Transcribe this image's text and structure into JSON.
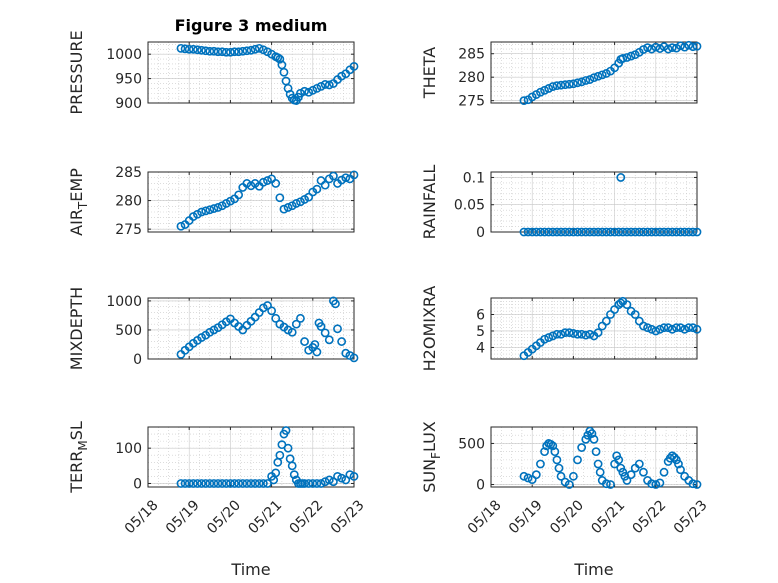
{
  "figure": {
    "title": "Figure 3 medium",
    "marker_color": "#0072BD"
  },
  "chart_data": [
    {
      "type": "scatter",
      "ylabel": "PRESSURE",
      "ylabel_sub": "",
      "ylabel_post": "",
      "ylim": [
        900,
        1025
      ],
      "yticks": [
        900,
        950,
        1000
      ],
      "ytick_labels": [
        "900",
        "950",
        "1000"
      ],
      "xlim": [
        0,
        5
      ],
      "xticks": [
        0,
        1,
        2,
        3,
        4,
        5
      ],
      "xtick_labels": [],
      "x": [
        0.8,
        0.9,
        1.0,
        1.1,
        1.2,
        1.3,
        1.4,
        1.5,
        1.6,
        1.7,
        1.8,
        1.9,
        2.0,
        2.1,
        2.2,
        2.3,
        2.4,
        2.5,
        2.6,
        2.7,
        2.8,
        2.9,
        3.0,
        3.1,
        3.15,
        3.2,
        3.25,
        3.3,
        3.35,
        3.4,
        3.45,
        3.5,
        3.55,
        3.6,
        3.65,
        3.7,
        3.8,
        3.9,
        4.0,
        4.1,
        4.2,
        4.3,
        4.4,
        4.5,
        4.6,
        4.7,
        4.8,
        4.9,
        5.0
      ],
      "y": [
        1012,
        1011,
        1010,
        1010,
        1009,
        1008,
        1007,
        1006,
        1006,
        1005,
        1005,
        1004,
        1004,
        1005,
        1005,
        1006,
        1007,
        1008,
        1010,
        1012,
        1009,
        1005,
        1000,
        995,
        993,
        990,
        978,
        963,
        945,
        930,
        918,
        910,
        906,
        905,
        912,
        920,
        924,
        922,
        926,
        930,
        934,
        938,
        937,
        940,
        948,
        955,
        960,
        968,
        975
      ]
    },
    {
      "type": "scatter",
      "ylabel": "THETA",
      "ylabel_sub": "",
      "ylabel_post": "",
      "ylim": [
        274.5,
        287.5
      ],
      "yticks": [
        275,
        280,
        285
      ],
      "ytick_labels": [
        "275",
        "280",
        "285"
      ],
      "xlim": [
        0,
        5
      ],
      "xticks": [
        0,
        1,
        2,
        3,
        4,
        5
      ],
      "xtick_labels": [],
      "x": [
        0.8,
        0.9,
        1.0,
        1.1,
        1.2,
        1.3,
        1.4,
        1.5,
        1.6,
        1.7,
        1.8,
        1.9,
        2.0,
        2.1,
        2.2,
        2.3,
        2.4,
        2.5,
        2.6,
        2.7,
        2.8,
        2.9,
        3.0,
        3.1,
        3.15,
        3.2,
        3.3,
        3.4,
        3.5,
        3.6,
        3.7,
        3.8,
        3.9,
        4.0,
        4.1,
        4.2,
        4.3,
        4.4,
        4.5,
        4.6,
        4.7,
        4.8,
        4.9,
        5.0
      ],
      "y": [
        275,
        275.2,
        275.8,
        276.3,
        276.8,
        277.2,
        277.6,
        278,
        278.2,
        278.3,
        278.4,
        278.5,
        278.6,
        278.8,
        279,
        279.3,
        279.5,
        279.9,
        280.2,
        280.5,
        280.8,
        281.3,
        282,
        283,
        283.8,
        284,
        284.2,
        284.5,
        284.8,
        285.3,
        285.9,
        286.3,
        286,
        286.4,
        286.1,
        286.5,
        286,
        286.3,
        286.2,
        286.7,
        286.4,
        286.8,
        286.5,
        286.6
      ]
    },
    {
      "type": "scatter",
      "ylabel": "AIR",
      "ylabel_sub": "T",
      "ylabel_post": "EMP",
      "ylim": [
        274.5,
        285
      ],
      "yticks": [
        275,
        280,
        285
      ],
      "ytick_labels": [
        "275",
        "280",
        "285"
      ],
      "xlim": [
        0,
        5
      ],
      "xticks": [
        0,
        1,
        2,
        3,
        4,
        5
      ],
      "xtick_labels": [],
      "x": [
        0.8,
        0.9,
        1.0,
        1.1,
        1.2,
        1.3,
        1.4,
        1.5,
        1.6,
        1.7,
        1.8,
        1.9,
        2.0,
        2.1,
        2.2,
        2.3,
        2.4,
        2.5,
        2.6,
        2.7,
        2.8,
        2.9,
        3.0,
        3.1,
        3.2,
        3.3,
        3.4,
        3.5,
        3.6,
        3.7,
        3.8,
        3.9,
        4.0,
        4.1,
        4.2,
        4.3,
        4.4,
        4.5,
        4.6,
        4.7,
        4.8,
        4.9,
        5.0
      ],
      "y": [
        275.5,
        275.8,
        276.5,
        277.2,
        277.6,
        278.0,
        278.2,
        278.4,
        278.6,
        278.8,
        279.1,
        279.5,
        279.9,
        280.3,
        281,
        282.3,
        283,
        282.6,
        283,
        282.5,
        283.2,
        283.5,
        283.8,
        283,
        280.5,
        278.5,
        278.8,
        279.1,
        279.5,
        279.8,
        280.2,
        280.6,
        281.5,
        282,
        283.5,
        282.7,
        283.8,
        284.3,
        283,
        283.6,
        284,
        283.8,
        284.5
      ]
    },
    {
      "type": "scatter",
      "ylabel": "RAINFALL",
      "ylabel_sub": "",
      "ylabel_post": "",
      "ylim": [
        0,
        0.11
      ],
      "yticks": [
        0,
        0.05,
        0.1
      ],
      "ytick_labels": [
        "0",
        "0.05",
        "0.1"
      ],
      "xlim": [
        0,
        5
      ],
      "xticks": [
        0,
        1,
        2,
        3,
        4,
        5
      ],
      "xtick_labels": [],
      "x": [
        0.8,
        0.9,
        1.0,
        1.1,
        1.2,
        1.3,
        1.4,
        1.5,
        1.6,
        1.7,
        1.8,
        1.9,
        2.0,
        2.1,
        2.2,
        2.3,
        2.4,
        2.5,
        2.6,
        2.7,
        2.8,
        2.9,
        3.0,
        3.1,
        3.2,
        3.3,
        3.4,
        3.5,
        3.6,
        3.7,
        3.8,
        3.9,
        4.0,
        4.1,
        4.2,
        4.3,
        4.4,
        4.5,
        4.6,
        4.7,
        4.8,
        4.9,
        5.0,
        3.15
      ],
      "y": [
        0,
        0,
        0,
        0,
        0,
        0,
        0,
        0,
        0,
        0,
        0,
        0,
        0,
        0,
        0,
        0,
        0,
        0,
        0,
        0,
        0,
        0,
        0,
        0,
        0,
        0,
        0,
        0,
        0,
        0,
        0,
        0,
        0,
        0,
        0,
        0,
        0,
        0,
        0,
        0,
        0,
        0,
        0,
        0.1
      ]
    },
    {
      "type": "scatter",
      "ylabel": "MIXDEPTH",
      "ylabel_sub": "",
      "ylabel_post": "",
      "ylim": [
        0,
        1050
      ],
      "yticks": [
        0,
        500,
        1000
      ],
      "ytick_labels": [
        "0",
        "500",
        "1000"
      ],
      "xlim": [
        0,
        5
      ],
      "xticks": [
        0,
        1,
        2,
        3,
        4,
        5
      ],
      "xtick_labels": [],
      "x": [
        0.8,
        0.9,
        1.0,
        1.1,
        1.2,
        1.3,
        1.4,
        1.5,
        1.6,
        1.7,
        1.8,
        1.9,
        2.0,
        2.1,
        2.2,
        2.3,
        2.4,
        2.5,
        2.6,
        2.7,
        2.8,
        2.9,
        3.0,
        3.1,
        3.2,
        3.3,
        3.4,
        3.5,
        3.6,
        3.7,
        3.8,
        3.9,
        4.0,
        4.05,
        4.1,
        4.15,
        4.2,
        4.3,
        4.4,
        4.5,
        4.55,
        4.6,
        4.7,
        4.8,
        4.9,
        5.0
      ],
      "y": [
        80,
        150,
        210,
        270,
        320,
        370,
        410,
        460,
        500,
        540,
        590,
        640,
        690,
        620,
        560,
        500,
        580,
        650,
        720,
        800,
        880,
        920,
        830,
        700,
        600,
        550,
        500,
        460,
        600,
        700,
        300,
        150,
        200,
        250,
        120,
        620,
        560,
        450,
        330,
        1000,
        950,
        520,
        300,
        100,
        60,
        20
      ]
    },
    {
      "type": "scatter",
      "ylabel": "H2OMIXRA",
      "ylabel_sub": "",
      "ylabel_post": "",
      "ylim": [
        3.3,
        7.0
      ],
      "yticks": [
        4,
        5,
        6
      ],
      "ytick_labels": [
        "4",
        "5",
        "6"
      ],
      "xlim": [
        0,
        5
      ],
      "xticks": [
        0,
        1,
        2,
        3,
        4,
        5
      ],
      "xtick_labels": [],
      "x": [
        0.8,
        0.9,
        1.0,
        1.1,
        1.2,
        1.3,
        1.4,
        1.5,
        1.6,
        1.7,
        1.8,
        1.9,
        2.0,
        2.1,
        2.2,
        2.3,
        2.4,
        2.5,
        2.6,
        2.7,
        2.8,
        2.9,
        3.0,
        3.1,
        3.15,
        3.2,
        3.3,
        3.4,
        3.5,
        3.6,
        3.7,
        3.8,
        3.9,
        4.0,
        4.1,
        4.2,
        4.3,
        4.4,
        4.5,
        4.6,
        4.7,
        4.8,
        4.9,
        5.0
      ],
      "y": [
        3.5,
        3.7,
        3.9,
        4.1,
        4.3,
        4.5,
        4.6,
        4.7,
        4.8,
        4.8,
        4.9,
        4.9,
        4.85,
        4.8,
        4.8,
        4.75,
        4.8,
        4.7,
        4.9,
        5.3,
        5.6,
        6.0,
        6.3,
        6.6,
        6.7,
        6.8,
        6.6,
        6.2,
        6.0,
        5.6,
        5.3,
        5.2,
        5.1,
        5.0,
        5.1,
        5.2,
        5.2,
        5.1,
        5.2,
        5.2,
        5.1,
        5.2,
        5.2,
        5.1
      ]
    },
    {
      "type": "scatter",
      "ylabel": "TERR",
      "ylabel_sub": "M",
      "ylabel_post": "SL",
      "ylim": [
        -10,
        160
      ],
      "yticks": [
        0,
        100
      ],
      "ytick_labels": [
        "0",
        "100"
      ],
      "xlim": [
        0,
        5
      ],
      "xticks": [
        0,
        1,
        2,
        3,
        4,
        5
      ],
      "xtick_labels": [
        "05/18",
        "05/19",
        "05/20",
        "05/21",
        "05/22",
        "05/23"
      ],
      "x": [
        0.8,
        0.9,
        1.0,
        1.1,
        1.2,
        1.3,
        1.4,
        1.5,
        1.6,
        1.7,
        1.8,
        1.9,
        2.0,
        2.1,
        2.2,
        2.3,
        2.4,
        2.5,
        2.6,
        2.7,
        2.8,
        2.9,
        3.0,
        3.05,
        3.1,
        3.15,
        3.2,
        3.25,
        3.3,
        3.35,
        3.4,
        3.45,
        3.5,
        3.55,
        3.6,
        3.65,
        3.7,
        3.75,
        3.8,
        3.9,
        4.0,
        4.1,
        4.2,
        4.3,
        4.4,
        4.5,
        4.6,
        4.7,
        4.8,
        4.9,
        5.0
      ],
      "y": [
        0,
        0,
        0,
        0,
        0,
        0,
        0,
        0,
        0,
        0,
        0,
        0,
        0,
        0,
        0,
        0,
        0,
        0,
        0,
        0,
        0,
        0,
        20,
        10,
        30,
        60,
        80,
        110,
        140,
        150,
        100,
        70,
        50,
        25,
        10,
        0,
        0,
        0,
        0,
        0,
        0,
        0,
        0,
        5,
        10,
        5,
        20,
        15,
        10,
        25,
        20
      ]
    },
    {
      "type": "scatter",
      "ylabel": "SUN",
      "ylabel_sub": "F",
      "ylabel_post": "LUX",
      "ylim": [
        -30,
        700
      ],
      "yticks": [
        0,
        500
      ],
      "ytick_labels": [
        "0",
        "500"
      ],
      "xlim": [
        0,
        5
      ],
      "xticks": [
        0,
        1,
        2,
        3,
        4,
        5
      ],
      "xtick_labels": [
        "05/18",
        "05/19",
        "05/20",
        "05/21",
        "05/22",
        "05/23"
      ],
      "x": [
        0.8,
        0.9,
        1.0,
        1.1,
        1.2,
        1.3,
        1.35,
        1.4,
        1.45,
        1.5,
        1.55,
        1.6,
        1.65,
        1.7,
        1.8,
        1.9,
        2.0,
        2.1,
        2.2,
        2.3,
        2.35,
        2.4,
        2.45,
        2.5,
        2.55,
        2.6,
        2.65,
        2.7,
        2.8,
        2.9,
        3.0,
        3.05,
        3.1,
        3.15,
        3.2,
        3.25,
        3.3,
        3.4,
        3.5,
        3.6,
        3.7,
        3.8,
        3.9,
        4.0,
        4.1,
        4.2,
        4.3,
        4.35,
        4.4,
        4.45,
        4.5,
        4.55,
        4.6,
        4.7,
        4.8,
        4.9,
        5.0
      ],
      "y": [
        100,
        80,
        60,
        120,
        250,
        400,
        470,
        500,
        490,
        470,
        400,
        300,
        200,
        100,
        30,
        0,
        100,
        300,
        450,
        550,
        600,
        650,
        620,
        550,
        400,
        250,
        150,
        50,
        10,
        0,
        250,
        350,
        300,
        200,
        150,
        100,
        50,
        120,
        200,
        250,
        150,
        50,
        10,
        0,
        20,
        150,
        280,
        320,
        350,
        330,
        300,
        250,
        180,
        100,
        50,
        10,
        0
      ]
    }
  ],
  "x_axis_label": "Time"
}
